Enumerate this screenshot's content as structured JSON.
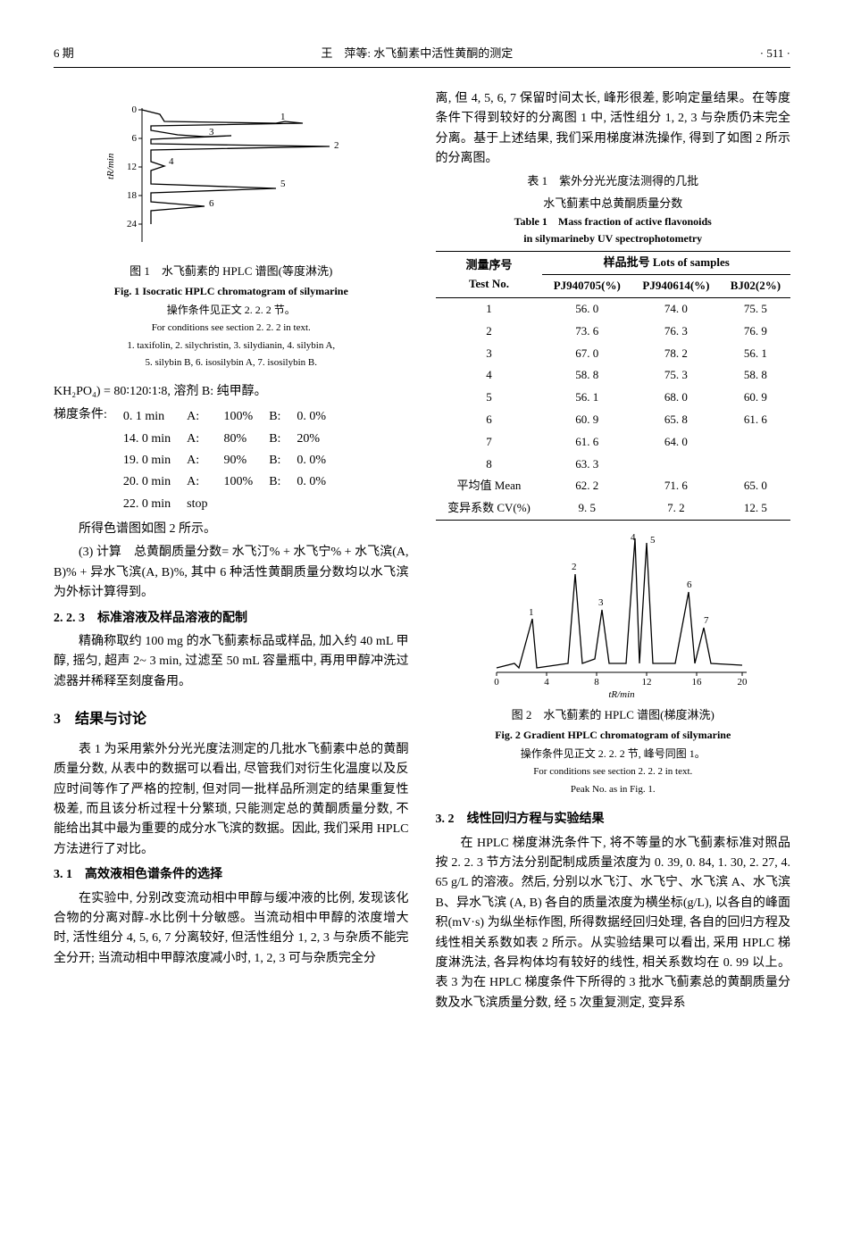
{
  "header": {
    "left": "6 期",
    "center": "王　萍等: 水飞蓟素中活性黄酮的测定",
    "right": "· 511 ·"
  },
  "fig1": {
    "caption_zh": "图 1　水飞蓟素的 HPLC 谱图(等度淋洗)",
    "caption_en": "Fig. 1 Isocratic HPLC chromatogram of silymarine",
    "note_zh": "操作条件见正文 2. 2. 2 节。",
    "note_en1": "For conditions see section 2. 2. 2 in text.",
    "note_en2": "1. taxifolin,  2. silychristin,  3. silydianin,  4. silybin A,",
    "note_en3": "5. silybin B,  6. isosilybin A,  7. isosilybin B.",
    "y_label": "tR/min",
    "y_ticks": [
      "0",
      "6",
      "12",
      "18",
      "24"
    ],
    "peak_labels": [
      "1",
      "2",
      "3",
      "4",
      "5",
      "6"
    ],
    "line_color": "#000000",
    "bg_color": "#ffffff"
  },
  "left_text": {
    "line_kh2po4": "KH₂PO₄) = 80∶120∶1∶8, 溶剂 B: 纯甲醇。",
    "gradient_label": "梯度条件:",
    "gradient_rows": [
      {
        "t": "0. 1 min",
        "a": "A:",
        "av": "100%",
        "b": "B:",
        "bv": "0. 0%"
      },
      {
        "t": "14. 0 min",
        "a": "A:",
        "av": "80%",
        "b": "B:",
        "bv": "20%"
      },
      {
        "t": "19. 0 min",
        "a": "A:",
        "av": "90%",
        "b": "B:",
        "bv": "0. 0%"
      },
      {
        "t": "20. 0 min",
        "a": "A:",
        "av": "100%",
        "b": "B:",
        "bv": "0. 0%"
      },
      {
        "t": "22. 0 min",
        "a": "stop",
        "av": "",
        "b": "",
        "bv": ""
      }
    ],
    "p1": "所得色谱图如图 2 所示。",
    "p2": "(3) 计算　总黄酮质量分数= 水飞汀% + 水飞宁% + 水飞滨(A, B)% + 异水飞滨(A, B)%, 其中 6 种活性黄酮质量分数均以水飞滨为外标计算得到。",
    "sub_223": "2. 2. 3　标准溶液及样品溶液的配制",
    "p3": "精确称取约 100 mg 的水飞蓟素标品或样品, 加入约 40 mL 甲醇, 摇匀, 超声 2~ 3 min, 过滤至 50 mL 容量瓶中, 再用甲醇冲洗过滤器并稀释至刻度备用。",
    "sec3": "3　结果与讨论",
    "p4": "表 1 为采用紫外分光光度法测定的几批水飞蓟素中总的黄酮质量分数, 从表中的数据可以看出, 尽管我们对衍生化温度以及反应时间等作了严格的控制, 但对同一批样品所测定的结果重复性极差, 而且该分析过程十分繁琐, 只能测定总的黄酮质量分数, 不能给出其中最为重要的成分水飞滨的数据。因此, 我们采用 HPLC 方法进行了对比。",
    "sub_31": "3. 1　高效液相色谱条件的选择",
    "p5": "在实验中, 分别改变流动相中甲醇与缓冲液的比例, 发现该化合物的分离对醇-水比例十分敏感。当流动相中甲醇的浓度增大时, 活性组分 4, 5, 6, 7 分离较好, 但活性组分 1, 2, 3 与杂质不能完全分开; 当流动相中甲醇浓度减小时, 1, 2, 3 可与杂质完全分"
  },
  "right_text": {
    "p_top": "离, 但 4, 5, 6, 7 保留时间太长, 峰形很差, 影响定量结果。在等度条件下得到较好的分离图 1 中, 活性组分 1, 2, 3 与杂质仍未完全分离。基于上述结果, 我们采用梯度淋洗操作, 得到了如图 2 所示的分离图。",
    "table1_title_zh1": "表 1　紫外分光光度法测得的几批",
    "table1_title_zh2": "水飞蓟素中总黄酮质量分数",
    "table1_title_en1": "Table 1　Mass fraction of active flavonoids",
    "table1_title_en2": "in silymarineby UV spectrophotometry",
    "table1": {
      "head_zh": "测量序号",
      "head_right_zh": "样品批号 Lots of samples",
      "head_en": "Test No.",
      "cols": [
        "PJ940705(%)",
        "PJ940614(%)",
        "BJ02(2%)"
      ],
      "rows": [
        [
          "1",
          "56. 0",
          "74. 0",
          "75. 5"
        ],
        [
          "2",
          "73. 6",
          "76. 3",
          "76. 9"
        ],
        [
          "3",
          "67. 0",
          "78. 2",
          "56. 1"
        ],
        [
          "4",
          "58. 8",
          "75. 3",
          "58. 8"
        ],
        [
          "5",
          "56. 1",
          "68. 0",
          "60. 9"
        ],
        [
          "6",
          "60. 9",
          "65. 8",
          "61. 6"
        ],
        [
          "7",
          "61. 6",
          "64. 0",
          ""
        ],
        [
          "8",
          "63. 3",
          "",
          ""
        ]
      ],
      "mean_label": "平均值 Mean",
      "mean": [
        "62. 2",
        "71. 6",
        "65. 0"
      ],
      "cv_label": "变异系数 CV(%)",
      "cv": [
        "9. 5",
        "7. 2",
        "12. 5"
      ]
    },
    "fig2": {
      "caption_zh": "图 2　水飞蓟素的 HPLC 谱图(梯度淋洗)",
      "caption_en": "Fig. 2 Gradient HPLC chromatogram of silymarine",
      "note_zh": "操作条件见正文 2. 2. 2 节, 峰号同图 1。",
      "note_en1": "For conditions see section 2. 2. 2 in text.",
      "note_en2": "Peak No. as in Fig. 1.",
      "x_label": "tR/min",
      "x_ticks": [
        "0",
        "4",
        "8",
        "12",
        "16",
        "20"
      ],
      "peak_labels": [
        "1",
        "2",
        "3",
        "4",
        "5",
        "6",
        "7"
      ],
      "line_color": "#000000"
    },
    "sub_32": "3. 2　线性回归方程与实验结果",
    "p_bottom": "在 HPLC 梯度淋洗条件下, 将不等量的水飞蓟素标准对照品按 2. 2. 3 节方法分别配制成质量浓度为 0. 39, 0. 84, 1. 30, 2. 27, 4. 65 g/L 的溶液。然后, 分别以水飞汀、水飞宁、水飞滨 A、水飞滨 B、异水飞滨 (A, B) 各自的质量浓度为横坐标(g/L), 以各自的峰面积(mV·s) 为纵坐标作图, 所得数据经回归处理, 各自的回归方程及线性相关系数如表 2 所示。从实验结果可以看出, 采用 HPLC 梯度淋洗法, 各异构体均有较好的线性, 相关系数均在 0. 99 以上。表 3 为在 HPLC 梯度条件下所得的 3 批水飞蓟素总的黄酮质量分数及水飞滨质量分数, 经 5 次重复测定, 变异系"
  }
}
